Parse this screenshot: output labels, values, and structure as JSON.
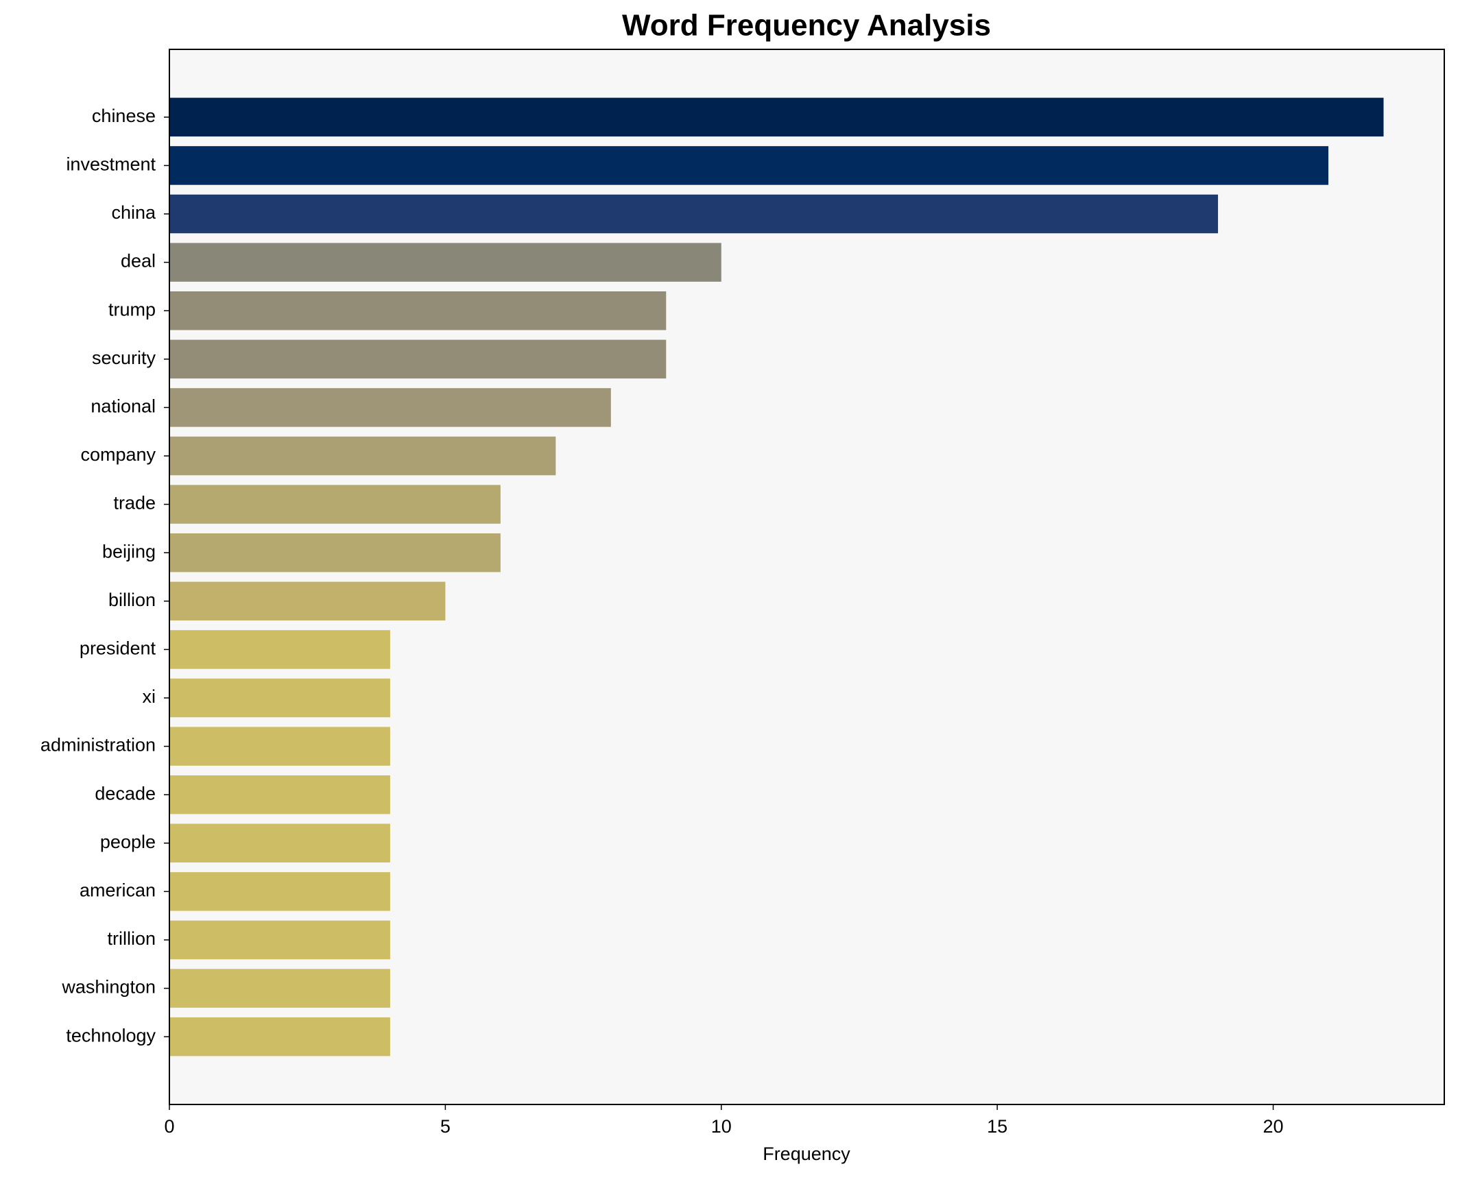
{
  "chart_data": {
    "type": "barh",
    "title": "Word Frequency Analysis",
    "xlabel": "Frequency",
    "categories": [
      "chinese",
      "investment",
      "china",
      "deal",
      "trump",
      "security",
      "national",
      "company",
      "trade",
      "beijing",
      "billion",
      "president",
      "xi",
      "administration",
      "decade",
      "people",
      "american",
      "trillion",
      "washington",
      "technology"
    ],
    "values": [
      22,
      21,
      19,
      10,
      9,
      9,
      8,
      7,
      6,
      6,
      5,
      4,
      4,
      4,
      4,
      4,
      4,
      4,
      4,
      4
    ],
    "colors": [
      "#00224e",
      "#012a5f",
      "#1f3a6f",
      "#898878",
      "#938d78",
      "#938d78",
      "#9e9677",
      "#aaa074",
      "#b6a970",
      "#b6a970",
      "#c2b16b",
      "#cdbd64",
      "#cdbd64",
      "#cdbd64",
      "#cdbd64",
      "#cdbd64",
      "#cdbd64",
      "#cdbd64",
      "#cdbd64",
      "#cdbd64"
    ],
    "xlim": [
      0,
      23.1
    ],
    "xticks": [
      0,
      5,
      10,
      15,
      20
    ],
    "grid": false
  }
}
